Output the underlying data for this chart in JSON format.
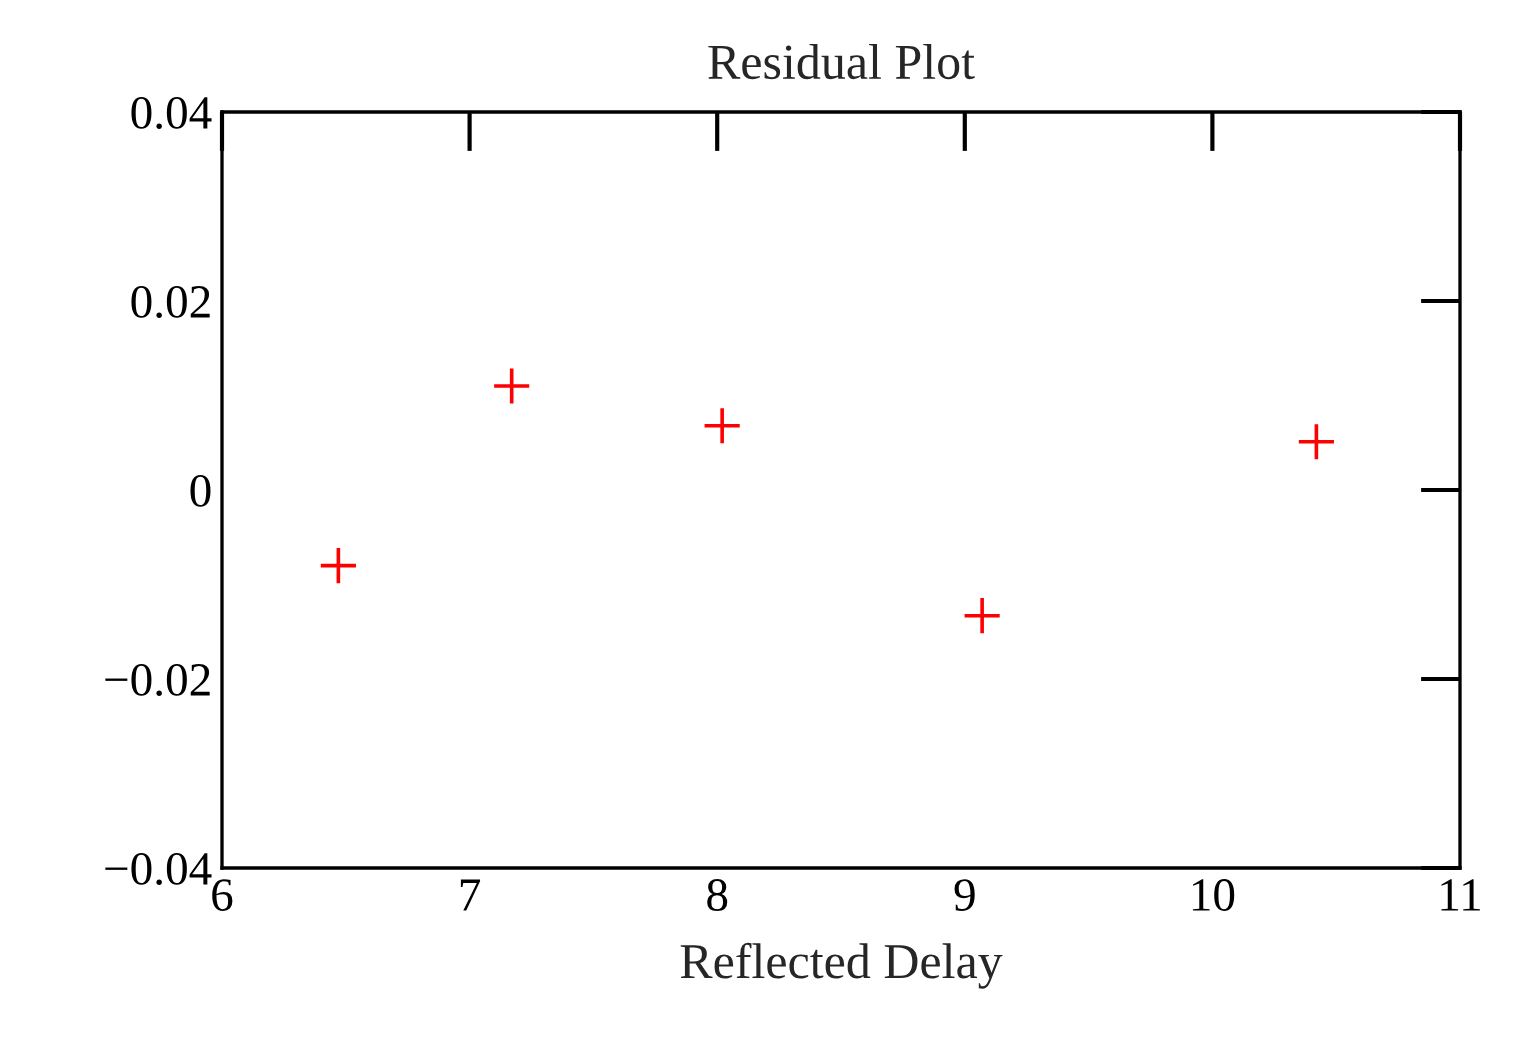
{
  "chart_data": {
    "type": "scatter",
    "title": "Residual Plot",
    "xlabel": "Reflected Delay",
    "x": [
      6.47,
      7.17,
      8.02,
      9.07,
      10.42
    ],
    "series": [
      {
        "color": "#ff0000",
        "values": [
          -0.008,
          0.011,
          0.0068,
          -0.0133,
          0.0051
        ]
      }
    ],
    "marker": "cross",
    "grid": false,
    "xlim": [
      6,
      11
    ],
    "xticks": [
      6,
      7,
      8,
      9,
      10,
      11
    ],
    "ylim": [
      -0.04,
      0.04
    ],
    "yticks": [
      {
        "value": -0.04,
        "label": "−0.04"
      },
      {
        "value": -0.02,
        "label": "−0.02"
      },
      0,
      0.02,
      0.04
    ]
  }
}
